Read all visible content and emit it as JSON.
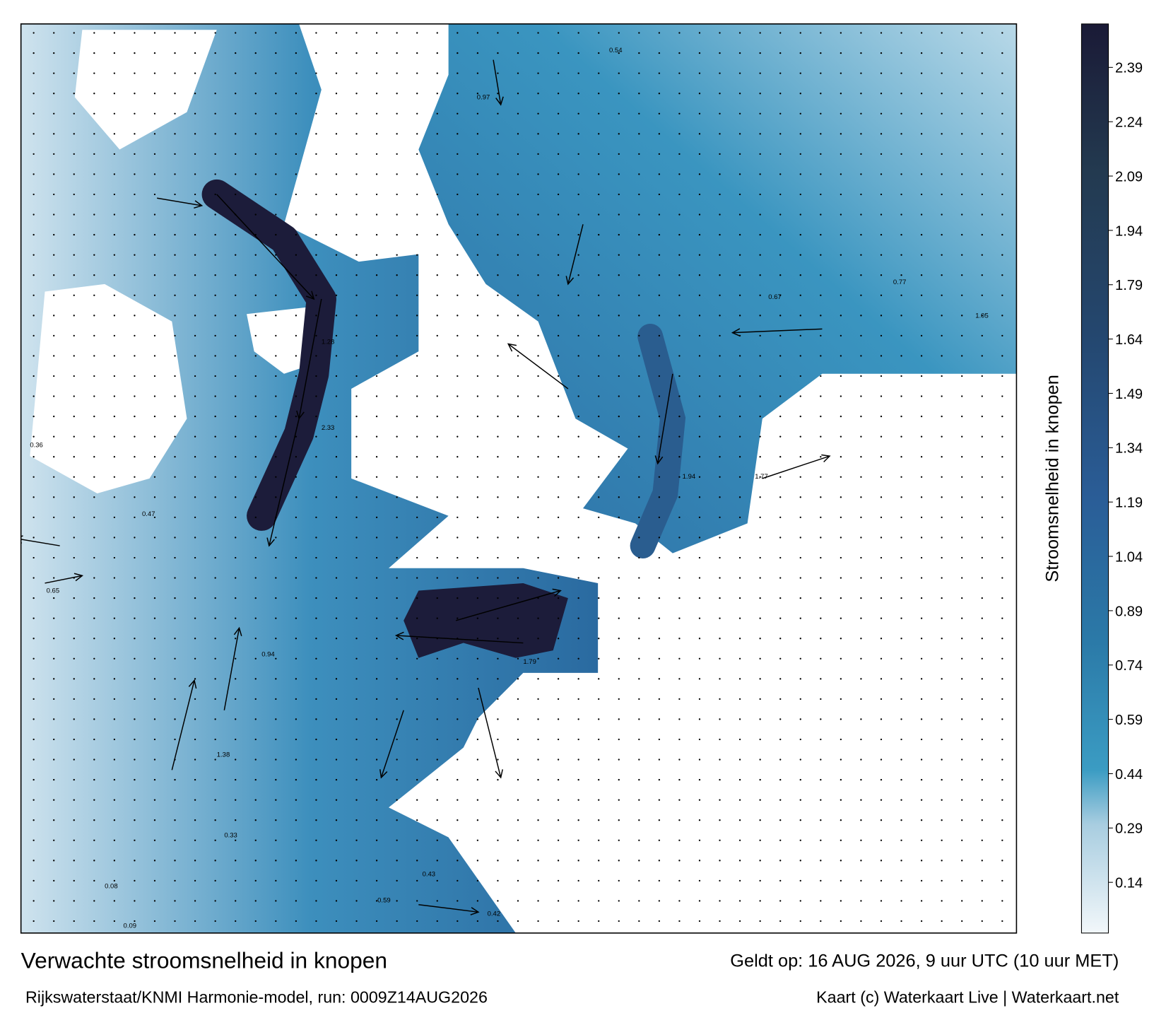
{
  "header": {
    "title": "Verwachte stroomsnelheid in knopen",
    "valid": "Geldt op: 16 AUG 2026, 9 uur UTC (10 uur MET)",
    "source": "Rijkswaterstaat/KNMI Harmonie-model, run: 0009Z14AUG2026",
    "credit": "Kaart (c) Waterkaart Live | Waterkaart.net"
  },
  "colorbar": {
    "label": "Stroomsnelheid in knopen",
    "lim": [
      0,
      2.51
    ],
    "ticks": [
      0.14,
      0.29,
      0.44,
      0.59,
      0.74,
      0.89,
      1.04,
      1.19,
      1.34,
      1.49,
      1.64,
      1.79,
      1.94,
      2.09,
      2.24,
      2.39
    ],
    "stops": [
      {
        "value": 0,
        "color": "#f2f7fa"
      },
      {
        "value": 0.3,
        "color": "#a8cde0"
      },
      {
        "value": 0.45,
        "color": "#3b9cc3"
      },
      {
        "value": 0.8,
        "color": "#2b7aa8"
      },
      {
        "value": 1.2,
        "color": "#2a5d97"
      },
      {
        "value": 1.65,
        "color": "#24476f"
      },
      {
        "value": 2.1,
        "color": "#233a50"
      },
      {
        "value": 2.51,
        "color": "#1a1a36"
      }
    ]
  },
  "map": {
    "current_labels": [
      "2.33",
      "1.94",
      "1.77",
      "1.05",
      "0.94",
      "0.47",
      "0.65",
      "0.43",
      "0.97",
      "1.28",
      "0.67",
      "0.54",
      "0.33",
      "0.08",
      "0.09",
      "0.59",
      "0.42",
      "1.79",
      "1.38",
      "0.77",
      "0.36"
    ]
  }
}
